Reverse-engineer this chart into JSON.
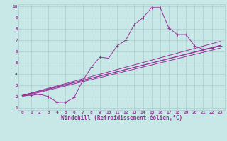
{
  "xlabel": "Windchill (Refroidissement éolien,°C)",
  "bg_color": "#c8e8e8",
  "line_color": "#993399",
  "grid_color": "#aacccc",
  "xlim": [
    -0.5,
    23.5
  ],
  "ylim": [
    0.8,
    10.2
  ],
  "xticks": [
    0,
    1,
    2,
    3,
    4,
    5,
    6,
    7,
    8,
    9,
    10,
    11,
    12,
    13,
    14,
    15,
    16,
    17,
    18,
    19,
    20,
    21,
    22,
    23
  ],
  "yticks": [
    1,
    2,
    3,
    4,
    5,
    6,
    7,
    8,
    9,
    10
  ],
  "line1_x": [
    0,
    1,
    2,
    3,
    4,
    5,
    6,
    7,
    8,
    9,
    10,
    11,
    12,
    13,
    14,
    15,
    16,
    17,
    18,
    19,
    20,
    21,
    22,
    23
  ],
  "line1_y": [
    2.1,
    2.1,
    2.2,
    2.0,
    1.5,
    1.5,
    1.9,
    3.4,
    4.6,
    5.5,
    5.4,
    6.5,
    7.0,
    8.4,
    9.0,
    9.9,
    9.9,
    8.1,
    7.5,
    7.5,
    6.5,
    6.2,
    6.3,
    6.5
  ],
  "line2_x": [
    0,
    23
  ],
  "line2_y": [
    2.1,
    6.5
  ],
  "line3_x": [
    0,
    23
  ],
  "line3_y": [
    2.0,
    6.3
  ],
  "line4_x": [
    0,
    23
  ],
  "line4_y": [
    2.05,
    6.55
  ],
  "line5_x": [
    0,
    23
  ],
  "line5_y": [
    2.1,
    6.9
  ],
  "tick_fontsize": 4.5,
  "xlabel_fontsize": 5.5,
  "tick_color": "#993399"
}
